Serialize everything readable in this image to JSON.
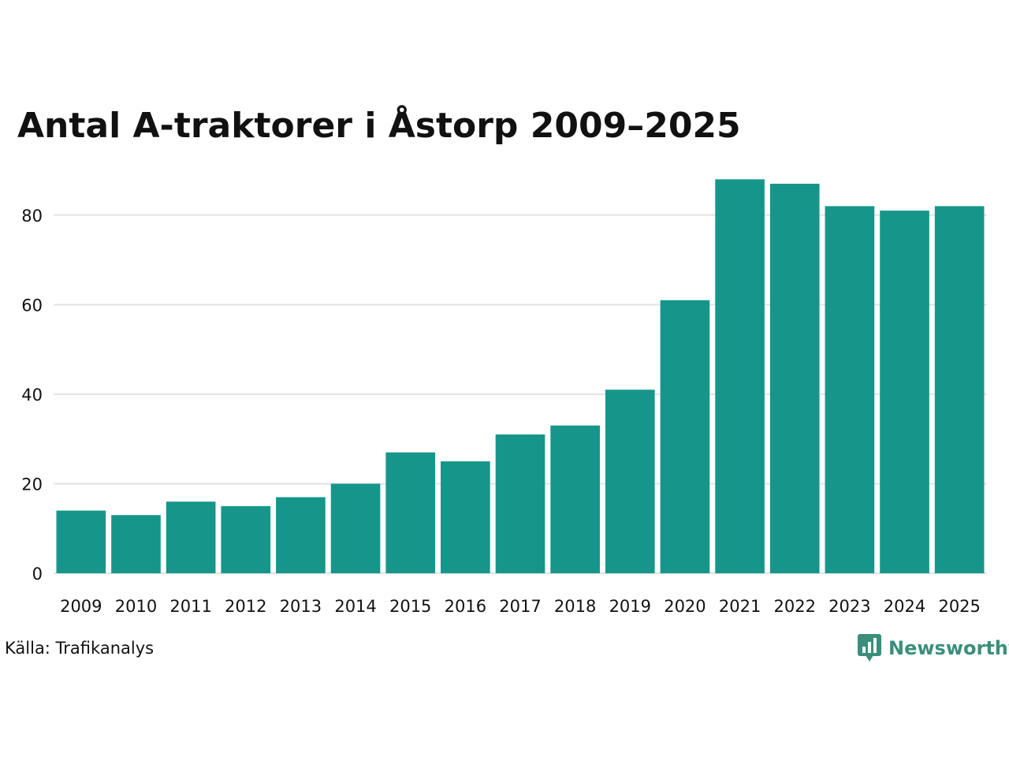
{
  "brand": {
    "name": "Newsworthy",
    "color": "#3a8f7c",
    "logo_icon": "bar-chart-speech-bubble-icon"
  },
  "source": {
    "label": "Källa: Trafikanalys"
  },
  "chart_data": {
    "type": "bar",
    "title": "Antal A-traktorer i Åstorp 2009–2025",
    "xlabel": "",
    "ylabel": "",
    "categories": [
      "2009",
      "2010",
      "2011",
      "2012",
      "2013",
      "2014",
      "2015",
      "2016",
      "2017",
      "2018",
      "2019",
      "2020",
      "2021",
      "2022",
      "2023",
      "2024",
      "2025"
    ],
    "values": [
      14,
      13,
      16,
      15,
      17,
      20,
      27,
      25,
      31,
      33,
      41,
      61,
      88,
      87,
      82,
      81,
      82
    ],
    "ylim": [
      0,
      90
    ],
    "yticks": [
      0,
      20,
      40,
      60,
      80
    ],
    "grid": true,
    "legend": "none",
    "bar_color": "#16968a",
    "grid_color": "#e3e3e3"
  }
}
